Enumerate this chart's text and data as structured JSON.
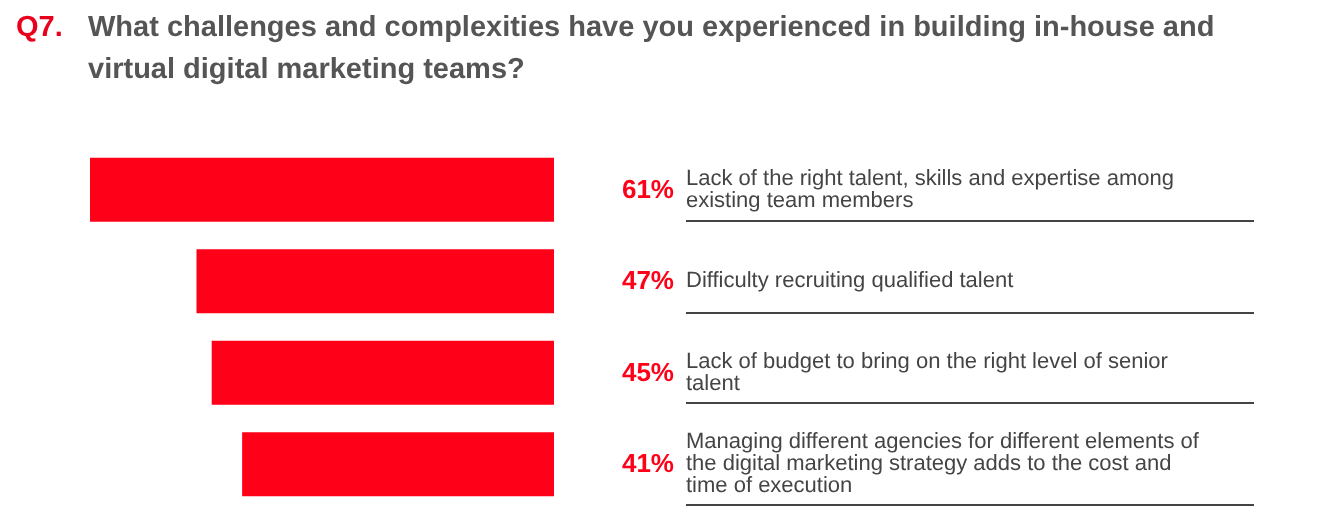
{
  "chart_data": {
    "type": "bar",
    "orientation": "horizontal",
    "title": "Q7.  What challenges and complexities have you experienced in building in-house and virtual digital marketing teams?",
    "categories": [
      "Lack of the right talent, skills and expertise among existing team members",
      "Difficulty recruiting qualified talent",
      "Lack of budget to bring on the right level of senior talent",
      "Managing different agencies for different elements of the digital marketing strategy adds to the cost and time of execution"
    ],
    "values": [
      61,
      47,
      45,
      41
    ],
    "value_labels": [
      "61%",
      "47%",
      "45%",
      "41%"
    ],
    "color": "#ff0019"
  }
}
